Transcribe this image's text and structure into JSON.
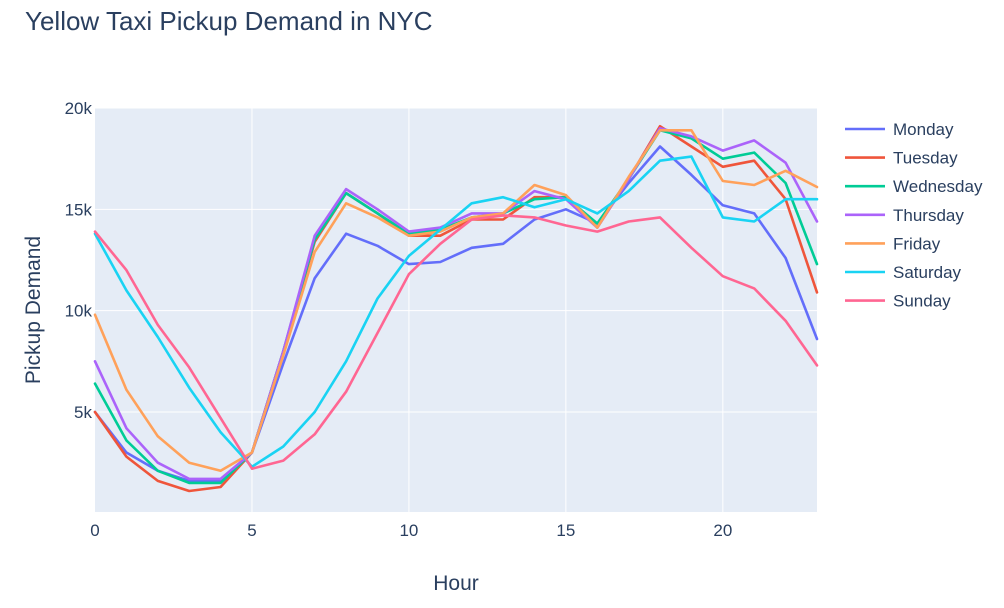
{
  "chart_data": {
    "type": "line",
    "title": "Yellow Taxi Pickup Demand in NYC",
    "xlabel": "Hour",
    "ylabel": "Pickup Demand",
    "xlim": [
      0,
      23
    ],
    "ylim": [
      0,
      20000
    ],
    "x_ticks": [
      0,
      5,
      10,
      15,
      20
    ],
    "x_tick_labels": [
      "0",
      "5",
      "10",
      "15",
      "20"
    ],
    "y_ticks": [
      5000,
      10000,
      15000,
      20000
    ],
    "y_tick_labels": [
      "5k",
      "10k",
      "15k",
      "20k"
    ],
    "grid": true,
    "plot_background": "#e5ecf6",
    "gridline_color": "#ffffff",
    "legend_position": "right",
    "x": [
      0,
      1,
      2,
      3,
      4,
      5,
      6,
      7,
      8,
      9,
      10,
      11,
      12,
      13,
      14,
      15,
      16,
      17,
      18,
      19,
      20,
      21,
      22,
      23
    ],
    "series": [
      {
        "name": "Monday",
        "color": "#636efa",
        "values": [
          5000,
          3000,
          2100,
          1600,
          1600,
          3000,
          7400,
          11600,
          13800,
          13200,
          12300,
          12400,
          13100,
          13300,
          14500,
          15000,
          14300,
          16300,
          18100,
          16700,
          15200,
          14800,
          12600,
          8600
        ]
      },
      {
        "name": "Tuesday",
        "color": "#EF553B",
        "values": [
          5000,
          2800,
          1600,
          1100,
          1300,
          3000,
          8000,
          13400,
          15800,
          14800,
          13700,
          13700,
          14500,
          14500,
          15600,
          15600,
          14100,
          16500,
          19100,
          18100,
          17100,
          17400,
          15500,
          10900
        ]
      },
      {
        "name": "Wednesday",
        "color": "#00cc96",
        "values": [
          6400,
          3600,
          2100,
          1500,
          1500,
          3000,
          8000,
          13500,
          15800,
          14800,
          13800,
          14000,
          14600,
          14800,
          15500,
          15600,
          14300,
          16500,
          18900,
          18500,
          17500,
          17800,
          16300,
          12300
        ]
      },
      {
        "name": "Thursday",
        "color": "#ab63fa",
        "values": [
          7500,
          4200,
          2500,
          1700,
          1700,
          3000,
          8000,
          13700,
          16000,
          15000,
          13900,
          14100,
          14800,
          14800,
          15900,
          15500,
          14100,
          16500,
          19000,
          18600,
          17900,
          18400,
          17300,
          14400
        ]
      },
      {
        "name": "Friday",
        "color": "#FFA15A",
        "values": [
          9800,
          6100,
          3800,
          2500,
          2100,
          3000,
          7800,
          12900,
          15300,
          14600,
          13700,
          13900,
          14600,
          14800,
          16200,
          15700,
          14100,
          16600,
          18900,
          18900,
          16400,
          16200,
          16900,
          16100
        ]
      },
      {
        "name": "Saturday",
        "color": "#19d3f3",
        "values": [
          13800,
          11000,
          8700,
          6200,
          4000,
          2300,
          3300,
          5000,
          7500,
          10600,
          12700,
          14000,
          15300,
          15600,
          15100,
          15500,
          14800,
          15900,
          17400,
          17600,
          14600,
          14400,
          15500,
          15500
        ]
      },
      {
        "name": "Sunday",
        "color": "#FF6692",
        "values": [
          13900,
          12000,
          9300,
          7200,
          4700,
          2200,
          2600,
          3900,
          6000,
          8900,
          11800,
          13300,
          14500,
          14700,
          14600,
          14200,
          13900,
          14400,
          14600,
          13100,
          11700,
          11100,
          9500,
          7300
        ]
      }
    ]
  }
}
